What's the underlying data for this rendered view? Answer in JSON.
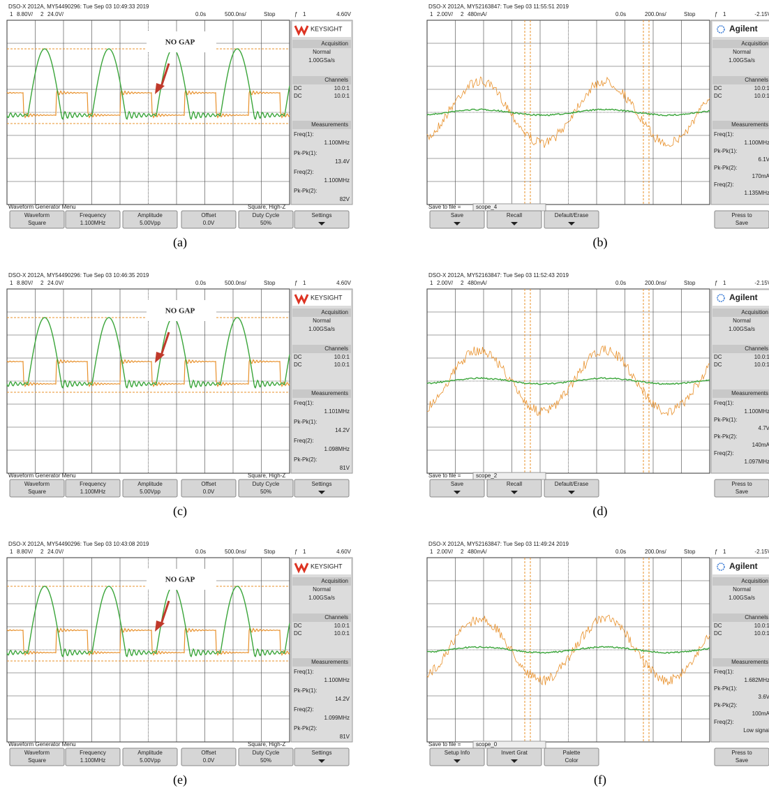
{
  "panels": [
    {
      "header": "DSO-X 2012A, MY54490296: Tue Sep 03 10:49:33 2019",
      "ch1_num": "1",
      "ch1_scale": "8.80V/",
      "ch2_num": "2",
      "ch2_scale": "24.0V/",
      "time_ref": "0.0s",
      "time_scale": "500.0ns/",
      "run": "Stop",
      "trig_ch": "1",
      "trig_level": "4.60V",
      "brand": "KEYSIGHT",
      "annotation": "NO GAP",
      "acquisition": {
        "title": "Acquisition",
        "mode": "Normal",
        "rate": "1.00GSa/s"
      },
      "channels": {
        "title": "Channels",
        "rows": [
          {
            "coupling": "DC",
            "probe": "10.0:1"
          },
          {
            "coupling": "DC",
            "probe": "10.0:1"
          }
        ]
      },
      "measurements": {
        "title": "Measurements",
        "items": [
          {
            "label": "Freq(1):",
            "value": "1.100MHz"
          },
          {
            "label": "Pk-Pk(1):",
            "value": "13.4V"
          },
          {
            "label": "Freq(2):",
            "value": "1.100MHz"
          },
          {
            "label": "Pk-Pk(2):",
            "value": "82V"
          }
        ]
      },
      "footer_left": "Waveform Generator Menu",
      "footer_right": "Square, High-Z",
      "softkeys": [
        {
          "title": "Waveform",
          "value": "Square"
        },
        {
          "title": "Frequency",
          "value": "1.100MHz"
        },
        {
          "title": "Amplitude",
          "value": "5.00Vpp"
        },
        {
          "title": "Offset",
          "value": "0.0V"
        },
        {
          "title": "Duty Cycle",
          "value": "50%"
        },
        {
          "title": "Settings"
        }
      ],
      "caption": "(a)"
    },
    {
      "header": "DSO-X 2012A, MY52163847: Tue Sep 03 11:55:51 2019",
      "ch1_num": "1",
      "ch1_scale": "2.00V/",
      "ch2_num": "2",
      "ch2_scale": "480mA/",
      "time_ref": "0.0s",
      "time_scale": "200.0ns/",
      "run": "Stop",
      "trig_ch": "1",
      "trig_level": "-2.15V",
      "brand": "Agilent",
      "acquisition": {
        "title": "Acquisition",
        "mode": "Normal",
        "rate": "1.00GSa/s"
      },
      "channels": {
        "title": "Channels",
        "rows": [
          {
            "coupling": "DC",
            "probe": "10.0:1"
          },
          {
            "coupling": "DC",
            "probe": "10.0:1"
          }
        ]
      },
      "measurements": {
        "title": "Measurements",
        "items": [
          {
            "label": "Freq(1):",
            "value": "1.100MHz"
          },
          {
            "label": "Pk-Pk(1):",
            "value": "6.1V"
          },
          {
            "label": "Pk-Pk(2):",
            "value": "170mA"
          },
          {
            "label": "Freq(2):",
            "value": "1.135MHz"
          }
        ]
      },
      "footer_left": "Save to file =",
      "footer_right": "scope_4",
      "softkeys": [
        {
          "title": "Save"
        },
        {
          "title": "Recall"
        },
        {
          "title": "Default/Erase"
        },
        {
          "title": "Press to",
          "value": "Save"
        }
      ],
      "caption": "(b)"
    },
    {
      "header": "DSO-X 2012A, MY54490296: Tue Sep 03 10:46:35 2019",
      "ch1_num": "1",
      "ch1_scale": "8.80V/",
      "ch2_num": "2",
      "ch2_scale": "24.0V/",
      "time_ref": "0.0s",
      "time_scale": "500.0ns/",
      "run": "Stop",
      "trig_ch": "1",
      "trig_level": "4.60V",
      "brand": "KEYSIGHT",
      "annotation": "NO GAP",
      "acquisition": {
        "title": "Acquisition",
        "mode": "Normal",
        "rate": "1.00GSa/s"
      },
      "channels": {
        "title": "Channels",
        "rows": [
          {
            "coupling": "DC",
            "probe": "10.0:1"
          },
          {
            "coupling": "DC",
            "probe": "10.0:1"
          }
        ]
      },
      "measurements": {
        "title": "Measurements",
        "items": [
          {
            "label": "Freq(1):",
            "value": "1.101MHz"
          },
          {
            "label": "Pk-Pk(1):",
            "value": "14.2V"
          },
          {
            "label": "Freq(2):",
            "value": "1.098MHz"
          },
          {
            "label": "Pk-Pk(2):",
            "value": "81V"
          }
        ]
      },
      "footer_left": "Waveform Generator Menu",
      "footer_right": "Square, High-Z",
      "softkeys": [
        {
          "title": "Waveform",
          "value": "Square"
        },
        {
          "title": "Frequency",
          "value": "1.100MHz"
        },
        {
          "title": "Amplitude",
          "value": "5.00Vpp"
        },
        {
          "title": "Offset",
          "value": "0.0V"
        },
        {
          "title": "Duty Cycle",
          "value": "50%"
        },
        {
          "title": "Settings"
        }
      ],
      "caption": "(c)"
    },
    {
      "header": "DSO-X 2012A, MY52163847: Tue Sep 03 11:52:43 2019",
      "ch1_num": "1",
      "ch1_scale": "2.00V/",
      "ch2_num": "2",
      "ch2_scale": "480mA/",
      "time_ref": "0.0s",
      "time_scale": "200.0ns/",
      "run": "Stop",
      "trig_ch": "1",
      "trig_level": "-2.15V",
      "brand": "Agilent",
      "acquisition": {
        "title": "Acquisition",
        "mode": "Normal",
        "rate": "1.00GSa/s"
      },
      "channels": {
        "title": "Channels",
        "rows": [
          {
            "coupling": "DC",
            "probe": "10.0:1"
          },
          {
            "coupling": "DC",
            "probe": "10.0:1"
          }
        ]
      },
      "measurements": {
        "title": "Measurements",
        "items": [
          {
            "label": "Freq(1):",
            "value": "1.100MHz"
          },
          {
            "label": "Pk-Pk(1):",
            "value": "4.7V"
          },
          {
            "label": "Pk-Pk(2):",
            "value": "140mA"
          },
          {
            "label": "Freq(2):",
            "value": "1.097MHz"
          }
        ]
      },
      "footer_left": "Save to file =",
      "footer_right": "scope_2",
      "softkeys": [
        {
          "title": "Save"
        },
        {
          "title": "Recall"
        },
        {
          "title": "Default/Erase"
        },
        {
          "title": "Press to",
          "value": "Save"
        }
      ],
      "caption": "(d)"
    },
    {
      "header": "DSO-X 2012A, MY54490296: Tue Sep 03 10:43:08 2019",
      "ch1_num": "1",
      "ch1_scale": "8.80V/",
      "ch2_num": "2",
      "ch2_scale": "24.0V/",
      "time_ref": "0.0s",
      "time_scale": "500.0ns/",
      "run": "Stop",
      "trig_ch": "1",
      "trig_level": "4.60V",
      "brand": "KEYSIGHT",
      "annotation": "NO GAP",
      "acquisition": {
        "title": "Acquisition",
        "mode": "Normal",
        "rate": "1.00GSa/s"
      },
      "channels": {
        "title": "Channels",
        "rows": [
          {
            "coupling": "DC",
            "probe": "10.0:1"
          },
          {
            "coupling": "DC",
            "probe": "10.0:1"
          }
        ]
      },
      "measurements": {
        "title": "Measurements",
        "items": [
          {
            "label": "Freq(1):",
            "value": "1.100MHz"
          },
          {
            "label": "Pk-Pk(1):",
            "value": "14.2V"
          },
          {
            "label": "Freq(2):",
            "value": "1.099MHz"
          },
          {
            "label": "Pk-Pk(2):",
            "value": "81V"
          }
        ]
      },
      "footer_left": "Waveform Generator Menu",
      "footer_right": "Square, High-Z",
      "softkeys": [
        {
          "title": "Waveform",
          "value": "Square"
        },
        {
          "title": "Frequency",
          "value": "1.100MHz"
        },
        {
          "title": "Amplitude",
          "value": "5.00Vpp"
        },
        {
          "title": "Offset",
          "value": "0.0V"
        },
        {
          "title": "Duty Cycle",
          "value": "50%"
        },
        {
          "title": "Settings"
        }
      ],
      "caption": "(e)"
    },
    {
      "header": "DSO-X 2012A, MY52163847: Tue Sep 03 11:49:24 2019",
      "ch1_num": "1",
      "ch1_scale": "2.00V/",
      "ch2_num": "2",
      "ch2_scale": "480mA/",
      "time_ref": "0.0s",
      "time_scale": "200.0ns/",
      "run": "Stop",
      "trig_ch": "1",
      "trig_level": "-2.15V",
      "brand": "Agilent",
      "acquisition": {
        "title": "Acquisition",
        "mode": "Normal",
        "rate": "1.00GSa/s"
      },
      "channels": {
        "title": "Channels",
        "rows": [
          {
            "coupling": "DC",
            "probe": "10.0:1"
          },
          {
            "coupling": "DC",
            "probe": "10.0:1"
          }
        ]
      },
      "measurements": {
        "title": "Measurements",
        "items": [
          {
            "label": "Freq(1):",
            "value": "1.682MHz"
          },
          {
            "label": "Pk-Pk(1):",
            "value": "3.6V"
          },
          {
            "label": "Pk-Pk(2):",
            "value": "100mA"
          },
          {
            "label": "Freq(2):",
            "value": "Low signal"
          }
        ]
      },
      "footer_left": "Save to file =",
      "footer_right": "scope_0",
      "softkeys": [
        {
          "title": "Setup Info"
        },
        {
          "title": "Invert Grat"
        },
        {
          "title": "Palette",
          "value": "Color"
        },
        {
          "title": "Press to",
          "value": "Save"
        }
      ],
      "caption": "(f)"
    }
  ]
}
